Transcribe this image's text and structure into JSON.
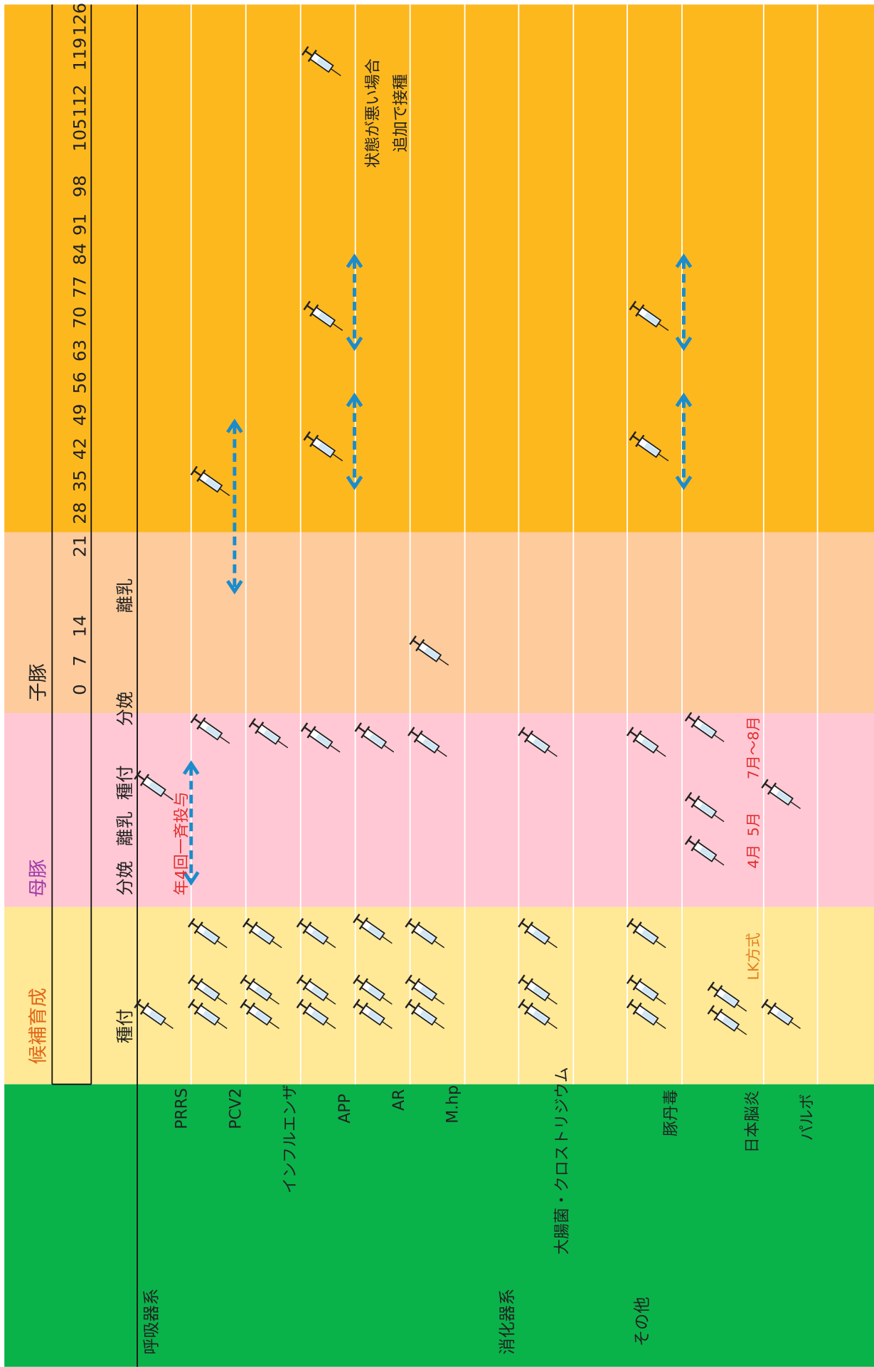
{
  "headers": {
    "candidate": "候補育成",
    "sow": "母豚",
    "piglet": "子豚"
  },
  "days": [
    126,
    119,
    112,
    105,
    98,
    91,
    84,
    77,
    70,
    63,
    56,
    49,
    42,
    35,
    28,
    21,
    14,
    7,
    0
  ],
  "events": [
    "種付",
    "分娩",
    "離乳",
    "種付",
    "分娩",
    "離乳"
  ],
  "categories": [
    "呼吸器系",
    "消化器系",
    "その他"
  ],
  "rows": [
    "PRRS",
    "PCV2",
    "インフルエンザ",
    "APP",
    "AR",
    "M.hp",
    "大腸菌・クロストリジウム",
    "豚丹毒",
    "日本脳炎",
    "パルボ"
  ],
  "notes": {
    "extra": [
      "状態が悪い場合",
      "追加で接種"
    ],
    "quarterly": "年4回一斉投与",
    "months": [
      "4月",
      "5月",
      "7月～8月"
    ],
    "lk": "LK方式"
  }
}
